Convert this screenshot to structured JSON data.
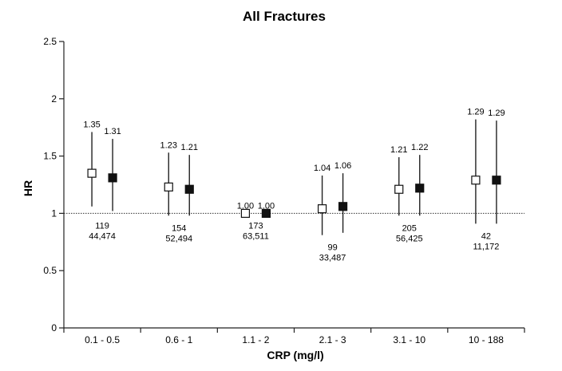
{
  "chart_data": {
    "type": "scatter",
    "title": "All Fractures",
    "xlabel": "CRP (mg/l)",
    "ylabel": "HR",
    "categories": [
      "0.1 - 0.5",
      "0.6 - 1",
      "1.1 - 2",
      "2.1 - 3",
      "3.1 - 10",
      "10 - 188"
    ],
    "ylim": [
      0,
      2.5
    ],
    "yticks": [
      "0",
      "0.5",
      "1",
      "1.5",
      "2",
      "2.5"
    ],
    "reference_line": 1,
    "grid": false,
    "series": [
      {
        "marker": "open-square",
        "values": [
          1.35,
          1.23,
          1.0,
          1.04,
          1.21,
          1.29
        ],
        "labels": [
          "1.35",
          "1.23",
          "1.00",
          "1.04",
          "1.21",
          "1.29"
        ],
        "ci_low": [
          1.06,
          0.98,
          1.0,
          0.81,
          0.98,
          0.91
        ],
        "ci_high": [
          1.71,
          1.53,
          1.0,
          1.33,
          1.49,
          1.82
        ]
      },
      {
        "marker": "filled-square",
        "values": [
          1.31,
          1.21,
          1.0,
          1.06,
          1.22,
          1.29
        ],
        "labels": [
          "1.31",
          "1.21",
          "1.00",
          "1.06",
          "1.22",
          "1.29"
        ],
        "ci_low": [
          1.02,
          0.98,
          1.0,
          0.83,
          0.98,
          0.91
        ],
        "ci_high": [
          1.65,
          1.51,
          1.0,
          1.35,
          1.51,
          1.81
        ]
      }
    ],
    "counts": [
      {
        "events": "119",
        "n": "44,474"
      },
      {
        "events": "154",
        "n": "52,494"
      },
      {
        "events": "173",
        "n": "63,511"
      },
      {
        "events": "99",
        "n": "33,487"
      },
      {
        "events": "205",
        "n": "56,425"
      },
      {
        "events": "42",
        "n": "11,172"
      }
    ]
  }
}
